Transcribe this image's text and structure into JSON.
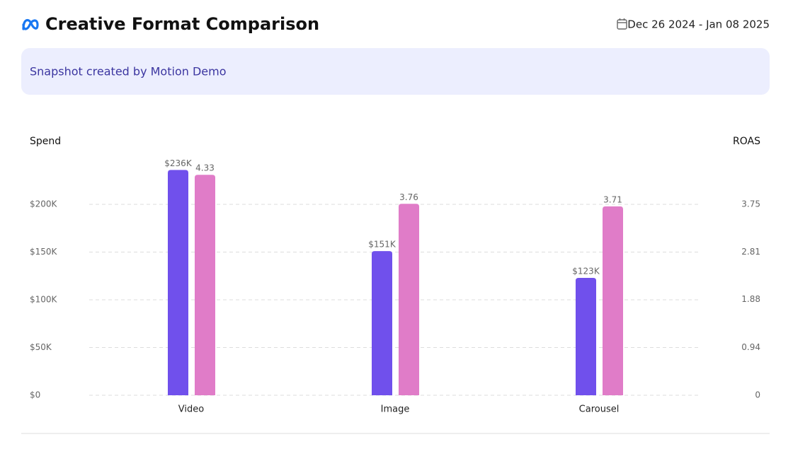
{
  "header": {
    "title": "Creative Format Comparison",
    "date_range": "Dec 26 2024 - Jan 08 2025"
  },
  "banner": {
    "text": "Snapshot created by Motion Demo"
  },
  "chart_data": {
    "type": "bar",
    "categories": [
      "Video",
      "Image",
      "Carousel"
    ],
    "series": [
      {
        "name": "Spend",
        "color": "#7050ec",
        "values": [
          236000,
          151000,
          123000
        ],
        "value_labels": [
          "$236K",
          "$151K",
          "$123K"
        ]
      },
      {
        "name": "ROAS",
        "color": "#e07cc8",
        "axis": "y2",
        "values": [
          4.33,
          3.76,
          3.71
        ]
      }
    ],
    "ylim": [
      0,
      250000
    ],
    "yticks": [
      {
        "value": 0,
        "label": "$0"
      },
      {
        "value": 50000,
        "label": "$50K"
      },
      {
        "value": 100000,
        "label": "$100K"
      },
      {
        "value": 150000,
        "label": "$150K"
      },
      {
        "value": 200000,
        "label": "$200K"
      }
    ],
    "y2lim": [
      0,
      4.6875
    ],
    "y2ticks": [
      0,
      0.94,
      1.88,
      2.81,
      3.75
    ],
    "grid": true
  }
}
